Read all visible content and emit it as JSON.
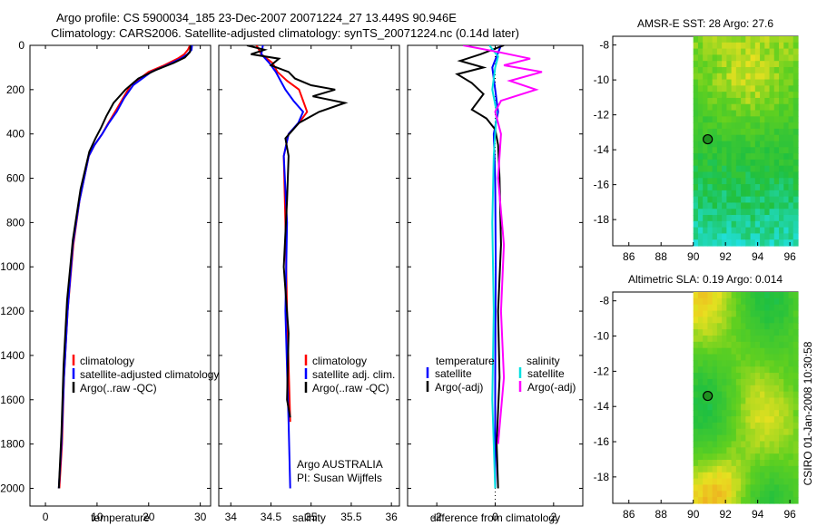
{
  "header": {
    "line1": "Argo profile: CS 5900034_185 23-Dec-2007 20071224_27 13.449S 90.946E",
    "line2": "Climatology: CARS2006. Satellite-adjusted climatology: synTS_20071224.nc (0.14d later)"
  },
  "depth_axis": {
    "ticks": [
      0,
      200,
      400,
      600,
      800,
      1000,
      1200,
      1400,
      1600,
      1800,
      2000
    ],
    "ylim": [
      0,
      2080
    ]
  },
  "chart_data": [
    {
      "type": "line",
      "id": "temperature",
      "xlabel": "temperature",
      "xlim": [
        -3,
        32
      ],
      "xticks": [
        0,
        10,
        20,
        30
      ],
      "series": [
        {
          "name": "climatology",
          "color": "#ff0000",
          "x": [
            28.0,
            27.6,
            26.9,
            25.6,
            23.0,
            20.0,
            16.5,
            15.0,
            13.5,
            12.2,
            11.0,
            9.5,
            8.4,
            6.6,
            5.4,
            4.3,
            3.6,
            3.2,
            2.7
          ],
          "y": [
            0,
            20,
            40,
            60,
            90,
            120,
            180,
            240,
            300,
            350,
            400,
            450,
            500,
            700,
            900,
            1200,
            1500,
            1800,
            2000
          ]
        },
        {
          "name": "satellite-adjusted climatology",
          "color": "#0000ff",
          "x": [
            28.4,
            28.3,
            27.5,
            26.2,
            23.5,
            20.5,
            17.0,
            15.2,
            13.8,
            12.3,
            11.0,
            9.5,
            8.4,
            6.6,
            5.3,
            4.3,
            3.6,
            3.1,
            2.6
          ],
          "y": [
            0,
            20,
            40,
            60,
            90,
            120,
            180,
            240,
            300,
            350,
            400,
            450,
            500,
            700,
            900,
            1200,
            1500,
            1800,
            2000
          ]
        },
        {
          "name": "Argo(..raw -QC)",
          "color": "#000000",
          "x": [
            28.1,
            28.0,
            27.0,
            24.8,
            21.5,
            18.0,
            15.5,
            13.2,
            11.8,
            10.8,
            9.7,
            8.5,
            6.8,
            5.3,
            4.2,
            3.5,
            3.1,
            2.6
          ],
          "y": [
            0,
            30,
            55,
            80,
            110,
            150,
            200,
            260,
            320,
            370,
            420,
            480,
            650,
            880,
            1150,
            1450,
            1750,
            2000
          ]
        }
      ],
      "legend": {
        "position": "lower-right",
        "items": [
          "climatology",
          "satellite-adjusted climatology",
          "Argo(..raw -QC)"
        ]
      }
    },
    {
      "type": "line",
      "id": "salinity",
      "xlabel": "salinity",
      "xlim": [
        33.85,
        36.1
      ],
      "xticks": [
        34,
        34.5,
        35,
        35.5,
        36
      ],
      "series": [
        {
          "name": "climatology",
          "color": "#ff0000",
          "x": [
            34.32,
            34.38,
            34.52,
            34.58,
            34.7,
            34.85,
            34.9,
            34.95,
            34.85,
            34.72,
            34.66,
            34.68,
            34.7,
            34.74
          ],
          "y": [
            0,
            40,
            80,
            120,
            160,
            200,
            250,
            300,
            350,
            400,
            500,
            800,
            1200,
            1700
          ]
        },
        {
          "name": "satellite adj. clim.",
          "color": "#0000ff",
          "x": [
            34.4,
            34.38,
            34.48,
            34.56,
            34.62,
            34.68,
            34.78,
            34.9,
            34.84,
            34.72,
            34.66,
            34.7,
            34.68,
            34.72,
            34.74
          ],
          "y": [
            0,
            40,
            80,
            120,
            160,
            200,
            250,
            300,
            350,
            400,
            500,
            800,
            1200,
            1700,
            2000
          ]
        },
        {
          "name": "Argo(..raw -QC)",
          "color": "#000000",
          "x": [
            34.2,
            34.42,
            34.25,
            34.6,
            34.5,
            34.72,
            34.8,
            35.0,
            35.3,
            35.02,
            35.42,
            35.1,
            34.85,
            34.68,
            34.72,
            34.7,
            34.66,
            34.72,
            34.7,
            34.74
          ],
          "y": [
            0,
            20,
            40,
            60,
            90,
            120,
            150,
            180,
            200,
            230,
            260,
            300,
            350,
            420,
            500,
            700,
            1000,
            1300,
            1600,
            1680
          ]
        }
      ],
      "legend": {
        "position": "lower-right",
        "items": [
          "climatology",
          "satellite adj. clim.",
          "Argo(..raw -QC)"
        ]
      },
      "annotation": [
        "Argo AUSTRALIA",
        "PI: Susan Wijffels"
      ]
    },
    {
      "type": "line",
      "id": "difference",
      "xlabel": "difference from climatology",
      "xlim": [
        -3.0,
        3.0
      ],
      "xticks": [
        -2,
        0,
        2
      ],
      "series": [
        {
          "name": "temperature satellite",
          "color": "#0000ff",
          "x": [
            0.2,
            -0.1,
            0.0,
            0.1,
            -0.05,
            0.0,
            0.02,
            0.0,
            0.0
          ],
          "y": [
            0,
            100,
            200,
            300,
            400,
            600,
            1000,
            1500,
            2000
          ]
        },
        {
          "name": "temperature Argo(-adj)",
          "color": "#000000",
          "x": [
            0.3,
            -0.5,
            -1.2,
            -0.4,
            -1.3,
            -0.8,
            -0.4,
            -0.8,
            -0.3,
            0.0,
            0.1,
            0.15,
            0.2,
            0.1,
            0.15,
            0.05,
            0.1
          ],
          "y": [
            0,
            40,
            70,
            100,
            130,
            170,
            220,
            290,
            330,
            380,
            450,
            600,
            900,
            1200,
            1500,
            1800,
            2000
          ]
        },
        {
          "name": "salinity satellite",
          "color": "#00e0e0",
          "x": [
            -0.2,
            0.1,
            0.0,
            -0.1,
            0.05,
            -0.05,
            -0.1,
            -0.05,
            -0.1,
            0.0
          ],
          "y": [
            0,
            50,
            100,
            200,
            300,
            500,
            800,
            1200,
            1600,
            2000
          ]
        },
        {
          "name": "salinity Argo(-adj)",
          "color": "#ff00ff",
          "x": [
            -1.1,
            0.1,
            1.2,
            0.3,
            1.6,
            0.5,
            1.4,
            0.2,
            0.0,
            0.2,
            0.1,
            0.3,
            0.2,
            0.3,
            0.1
          ],
          "y": [
            0,
            30,
            60,
            90,
            120,
            160,
            200,
            250,
            300,
            400,
            600,
            900,
            1200,
            1500,
            1800
          ]
        }
      ],
      "legend": {
        "position": "lower-right",
        "left_title": "temperature",
        "left_items": [
          "satellite",
          "Argo(-adj)"
        ],
        "right_title": "salinity",
        "right_items": [
          "satellite",
          "Argo(-adj)"
        ]
      }
    }
  ],
  "maps": [
    {
      "title": "AMSR-E SST: 28 Argo: 27.6",
      "xticks": [
        86,
        88,
        90,
        92,
        94,
        96
      ],
      "yticks": [
        -8,
        -10,
        -12,
        -14,
        -16,
        -18
      ],
      "xlim": [
        85,
        96.5
      ],
      "ylim": [
        -19.5,
        -7.5
      ],
      "marker": [
        90.9,
        -13.4
      ]
    },
    {
      "title": "Altimetric SLA: 0.19 Argo: 0.014",
      "xticks": [
        86,
        88,
        90,
        92,
        94,
        96
      ],
      "yticks": [
        -8,
        -10,
        -12,
        -14,
        -16,
        -18
      ],
      "xlim": [
        85,
        96.5
      ],
      "ylim": [
        -19.5,
        -7.5
      ],
      "marker": [
        90.9,
        -13.4
      ]
    }
  ],
  "footer": {
    "side_label": "CSIRO 01-Jan-2008 10:30:58"
  }
}
